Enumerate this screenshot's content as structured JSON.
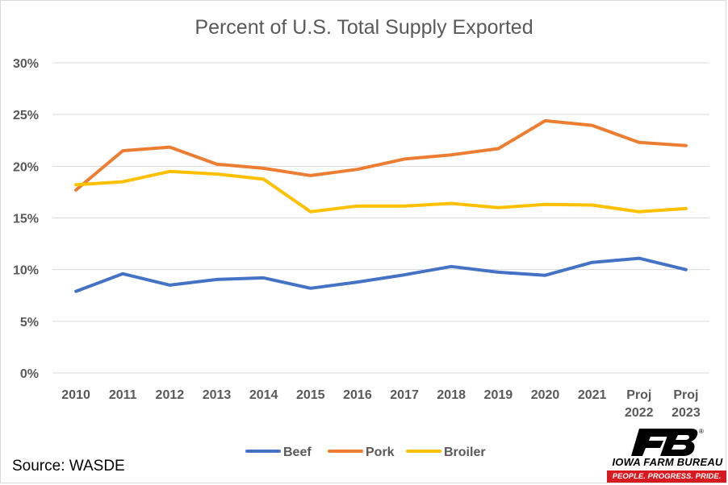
{
  "chart_data": {
    "type": "line",
    "title": "Percent of U.S. Total Supply Exported",
    "categories": [
      [
        "2010"
      ],
      [
        "2011"
      ],
      [
        "2012"
      ],
      [
        "2013"
      ],
      [
        "2014"
      ],
      [
        "2015"
      ],
      [
        "2016"
      ],
      [
        "2017"
      ],
      [
        "2018"
      ],
      [
        "2019"
      ],
      [
        "2020"
      ],
      [
        "2021"
      ],
      [
        "Proj",
        "2022"
      ],
      [
        "Proj",
        "2023"
      ]
    ],
    "y_ticks": [
      "0%",
      "5%",
      "10%",
      "15%",
      "20%",
      "25%",
      "30%"
    ],
    "ylim": [
      0,
      30
    ],
    "grid": "horizontal",
    "legend_position": "bottom",
    "series": [
      {
        "name": "Beef",
        "color": "#4472c4",
        "values": [
          7.9,
          9.6,
          8.5,
          9.05,
          9.2,
          8.2,
          8.8,
          9.5,
          10.3,
          9.75,
          9.45,
          10.7,
          11.1,
          10.0
        ]
      },
      {
        "name": "Pork",
        "color": "#ed7d31",
        "values": [
          17.7,
          21.5,
          21.85,
          20.2,
          19.8,
          19.1,
          19.7,
          20.7,
          21.1,
          21.7,
          24.4,
          23.95,
          22.3,
          22.0
        ]
      },
      {
        "name": "Broiler",
        "color": "#ffc000",
        "values": [
          18.2,
          18.5,
          19.5,
          19.25,
          18.75,
          15.6,
          16.15,
          16.15,
          16.4,
          16.0,
          16.3,
          16.25,
          15.6,
          15.9
        ]
      }
    ]
  },
  "source": "Source: WASDE",
  "logo": {
    "name": "IOWA FARM BUREAU",
    "tagline": "PEOPLE. PROGRESS. PRIDE.",
    "trademark": "®",
    "color": "#d71920"
  }
}
